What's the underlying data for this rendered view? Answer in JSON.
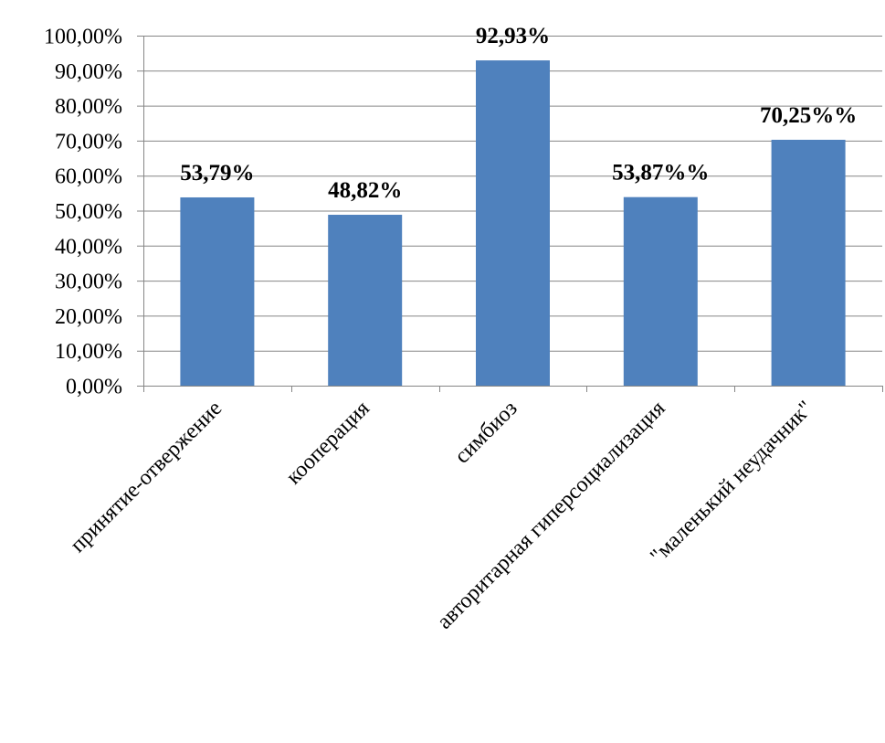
{
  "chart_data": {
    "type": "bar",
    "title": "",
    "xlabel": "",
    "ylabel": "",
    "categories": [
      "принятие-отвержение",
      "кооперация",
      "симбиоз",
      "авторитарная гиперсоциализация",
      "\"маленький неудачник\""
    ],
    "values": [
      53.79,
      48.82,
      92.93,
      53.87,
      70.25
    ],
    "data_labels": [
      "53,79%",
      "48,82%",
      "92,93%",
      "53,87%%",
      "70,25%%"
    ],
    "ylim": [
      0,
      100
    ],
    "yticks": [
      0,
      10,
      20,
      30,
      40,
      50,
      60,
      70,
      80,
      90,
      100
    ],
    "ytick_labels": [
      "0,00%",
      "10,00%",
      "20,00%",
      "30,00%",
      "40,00%",
      "50,00%",
      "60,00%",
      "70,00%",
      "80,00%",
      "90,00%",
      "100,00%"
    ],
    "grid": true,
    "legend": "none",
    "bar_color": "#4f81bd",
    "grid_color": "#868686"
  }
}
